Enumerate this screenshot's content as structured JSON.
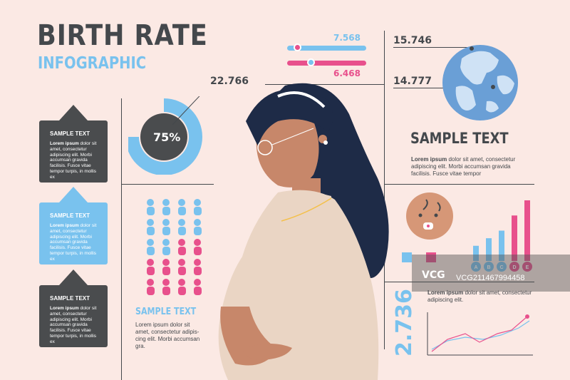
{
  "header": {
    "title": "BIRTH RATE",
    "subtitle": "INFOGRAPHIC"
  },
  "cards": [
    {
      "heading": "SAMPLE TEXT",
      "lead": "Lorem ipsum",
      "body": " dolor sit amet, consectetur adipiscing elit. Morbi accumsan gravida facilisis. Fusce vitae tempor turpis, in mollis ex",
      "color": "#4a4c4e"
    },
    {
      "heading": "SAMPLE TEXT",
      "lead": "Lorem ipsum",
      "body": " dolor sit amet, consectetur adipiscing elit. Morbi accumsan gravida facilisis. Fusce vitae tempor turpis, in mollis ex",
      "color": "#79c2ee"
    },
    {
      "heading": "SAMPLE TEXT",
      "lead": "Lorem ipsum",
      "body": " dolor sit amet, consectetur adipiscing elit. Morbi accumsan gravida facilisis. Fusce vitae tempor turpis, in mollis ex",
      "color": "#4a4c4e"
    }
  ],
  "donut": {
    "value_label": "22.766",
    "percent_label": "75%",
    "percent": 75
  },
  "sliders": [
    {
      "label": "7.568",
      "level": 0.12,
      "color": "#79c2ee"
    },
    {
      "label": "6.468",
      "level": 0.3,
      "color": "#e8508c"
    }
  ],
  "globe": {
    "top_value": "15.746",
    "bottom_value": "14.777"
  },
  "right_section": {
    "heading": "SAMPLE TEXT",
    "lead": "Lorem ipsum",
    "body": " dolor sit amet, consectetur adipiscing elit. Morbi accumsan gravida facilisis. Fusce vitae tempor",
    "body2": "facilisis. Fusce vitae tempor"
  },
  "people_grid": {
    "rows": 5,
    "cols": 4,
    "colors": [
      "#79c2ee",
      "#e8508c"
    ]
  },
  "bottom_left_text": {
    "heading": "SAMPLE TEXT",
    "body": "Lorem ipsum dolor sit amet, consectetur adipis-cing elit. Morbi accumsan gra."
  },
  "bar_chart": {
    "categories": [
      "A",
      "B",
      "C",
      "D",
      "E"
    ],
    "values": [
      2,
      3,
      4,
      6,
      8
    ]
  },
  "line_chart": {
    "big_number": "2.736"
  },
  "bottom_right_text": {
    "lead": "Lorem ipsum",
    "body": " dolor sit amet, consectetur adipiscing elit."
  },
  "watermark": {
    "logo": "VCG",
    "text": "VCG211467994458"
  },
  "colors": {
    "bg": "#fbe9e4",
    "dark": "#44484c",
    "blue": "#79c2ee",
    "pink": "#e8508c"
  }
}
